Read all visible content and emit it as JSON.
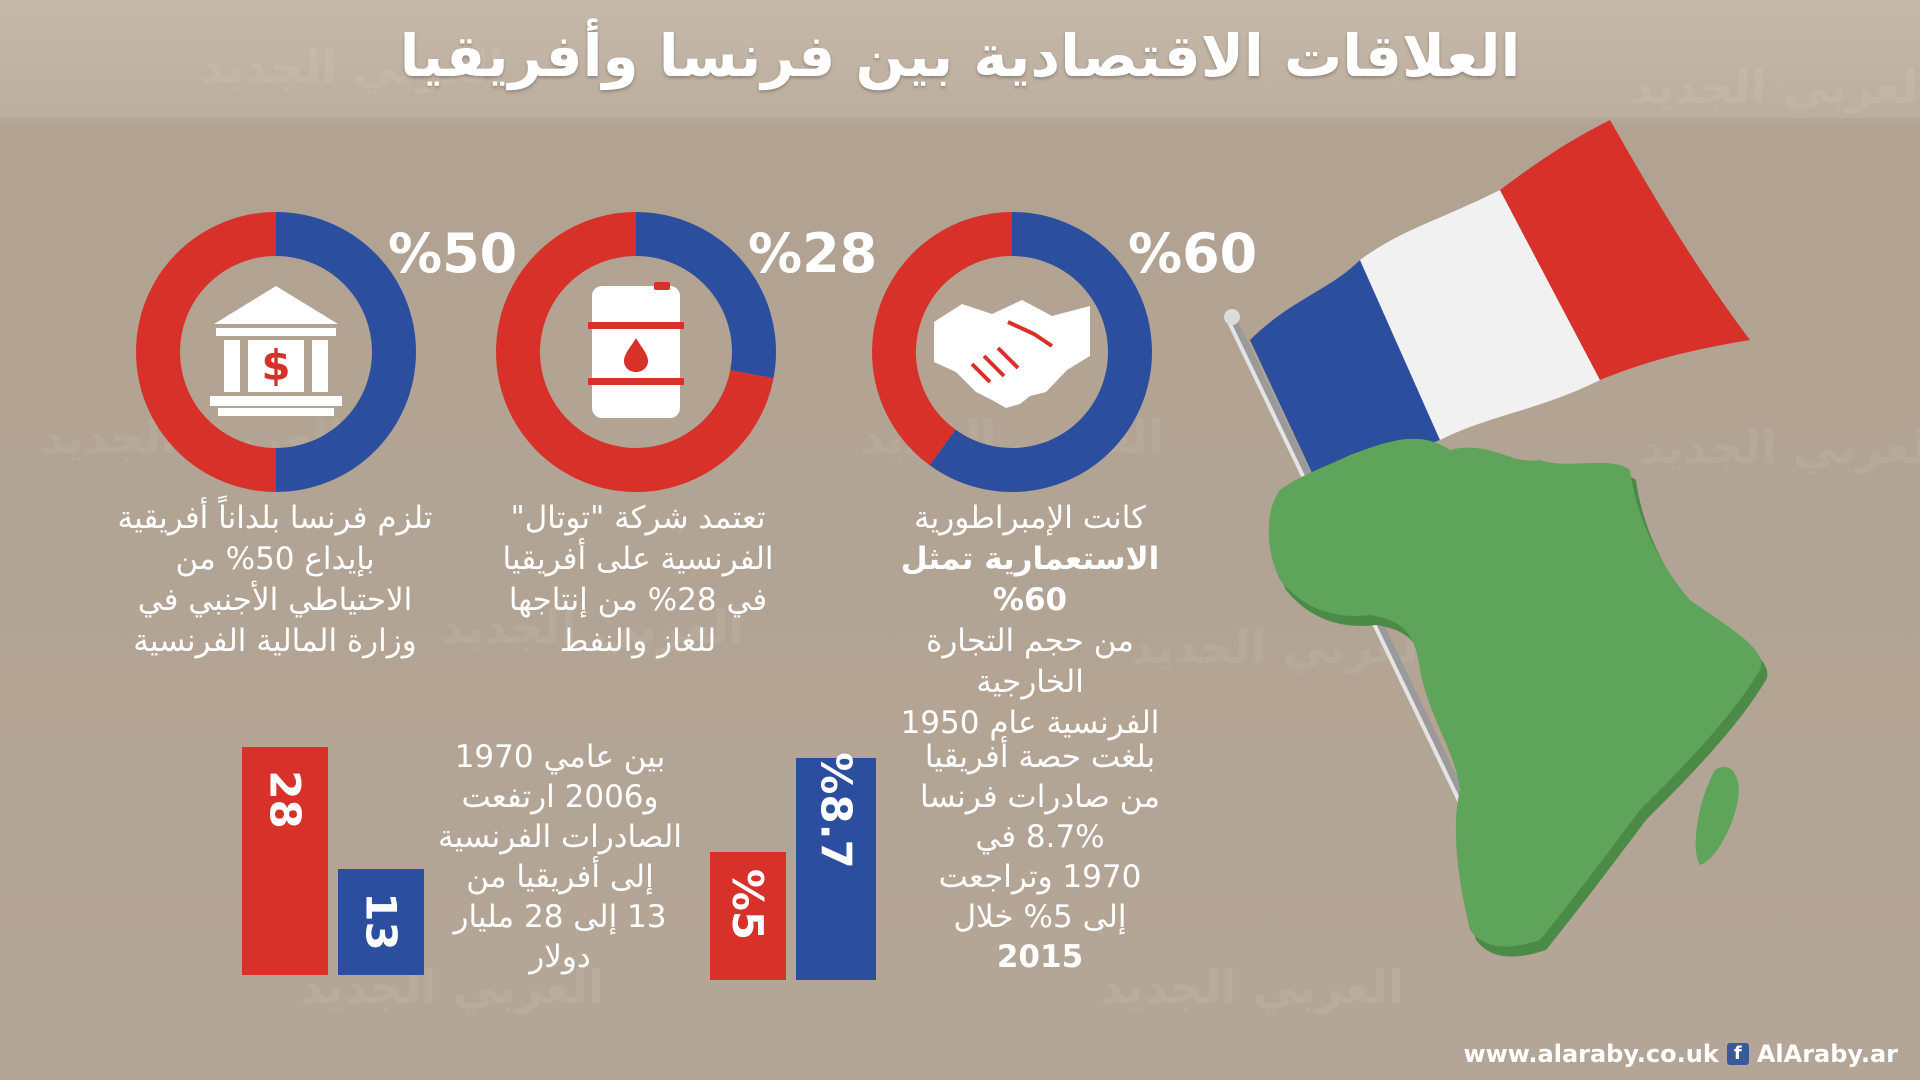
{
  "title": "العلاقات الاقتصادية بين فرنسا وأفريقيا",
  "watermark": "العربي الجديد",
  "colors": {
    "red": "#d8312a",
    "blue": "#2b4f9e",
    "green": "#5ea45a",
    "background": "#b5a797"
  },
  "donuts": [
    {
      "label": "%60",
      "value": 60,
      "icon": "handshake-icon",
      "desc_lines": [
        "كانت الإمبراطورية",
        "الاستعمارية تمثل 60%",
        "من حجم التجارة الخارجية",
        "الفرنسية عام 1950"
      ]
    },
    {
      "label": "%28",
      "value": 28,
      "icon": "oil-barrel-icon",
      "desc_lines": [
        "تعتمد شركة \"توتال\"",
        "الفرنسية على أفريقيا",
        "في 28% من إنتاجها",
        "للغاز والنفط"
      ]
    },
    {
      "label": "%50",
      "value": 50,
      "icon": "bank-dollar-icon",
      "desc_lines": [
        "تلزم فرنسا بلداناً أفريقية",
        "بإيداع 50% من",
        "الاحتياطي الأجنبي في",
        "وزارة المالية الفرنسية"
      ]
    }
  ],
  "bar_texts": {
    "exports_share": [
      "بلغت حصة أفريقيا",
      "من صادرات فرنسا",
      "8.7% في",
      "1970 وتراجعت",
      "إلى 5% خلال",
      "2015"
    ],
    "exports_value": [
      "بين عامي 1970",
      "و2006 ارتفعت",
      "الصادرات الفرنسية",
      "إلى أفريقيا من",
      "13 إلى 28 مليار",
      "دولار"
    ]
  },
  "chart_data": [
    {
      "type": "pie",
      "values": [
        60,
        40
      ]
    },
    {
      "type": "pie",
      "values": [
        28,
        72
      ]
    },
    {
      "type": "pie",
      "values": [
        50,
        50
      ]
    },
    {
      "type": "bar",
      "categories": [
        "1970",
        "2015"
      ],
      "values": [
        8.7,
        5
      ],
      "labels": [
        "%8.7",
        "%5"
      ]
    },
    {
      "type": "bar",
      "categories": [
        "1970",
        "2006"
      ],
      "values": [
        13,
        28
      ],
      "labels": [
        "13",
        "28"
      ]
    }
  ],
  "footer": {
    "url": "www.alaraby.co.uk",
    "facebook": "f",
    "handle": "AlAraby.ar"
  }
}
